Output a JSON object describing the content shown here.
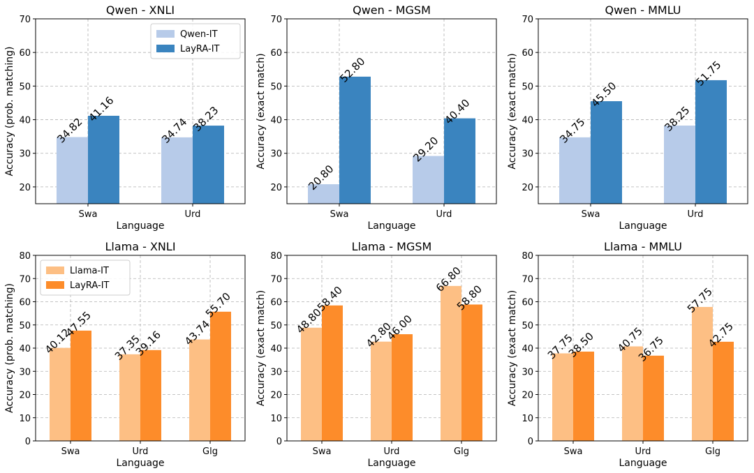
{
  "chart_data": [
    {
      "type": "bar",
      "title": "Qwen - XNLI",
      "xlabel": "Language",
      "ylabel": "Accuracy (prob. matching)",
      "ylim": [
        15,
        70
      ],
      "yticks": [
        20,
        30,
        40,
        50,
        60,
        70
      ],
      "grid": true,
      "categories": [
        "Swa",
        "Urd"
      ],
      "series": [
        {
          "name": "Qwen-IT",
          "values": [
            34.82,
            34.74
          ],
          "labels": [
            "34.82",
            "34.74"
          ],
          "color": "#b7cbe9"
        },
        {
          "name": "LayRA-IT",
          "values": [
            41.16,
            38.23
          ],
          "labels": [
            "41.16",
            "38.23"
          ],
          "color": "#3a84bf"
        }
      ],
      "legend": "top-right"
    },
    {
      "type": "bar",
      "title": "Qwen - MGSM",
      "xlabel": "Language",
      "ylabel": "Accuracy (exact match)",
      "ylim": [
        15,
        70
      ],
      "yticks": [
        20,
        30,
        40,
        50,
        60,
        70
      ],
      "grid": true,
      "categories": [
        "Swa",
        "Urd"
      ],
      "series": [
        {
          "name": "Qwen-IT",
          "values": [
            20.8,
            29.2
          ],
          "labels": [
            "20.80",
            "29.20"
          ],
          "color": "#b7cbe9"
        },
        {
          "name": "LayRA-IT",
          "values": [
            52.8,
            40.4
          ],
          "labels": [
            "52.80",
            "40.40"
          ],
          "color": "#3a84bf"
        }
      ],
      "legend": "none"
    },
    {
      "type": "bar",
      "title": "Qwen - MMLU",
      "xlabel": "Language",
      "ylabel": "Accuracy (exact match)",
      "ylim": [
        15,
        70
      ],
      "yticks": [
        20,
        30,
        40,
        50,
        60,
        70
      ],
      "grid": true,
      "categories": [
        "Swa",
        "Urd"
      ],
      "series": [
        {
          "name": "Qwen-IT",
          "values": [
            34.75,
            38.25
          ],
          "labels": [
            "34.75",
            "38.25"
          ],
          "color": "#b7cbe9"
        },
        {
          "name": "LayRA-IT",
          "values": [
            45.5,
            51.75
          ],
          "labels": [
            "45.50",
            "51.75"
          ],
          "color": "#3a84bf"
        }
      ],
      "legend": "none"
    },
    {
      "type": "bar",
      "title": "Llama - XNLI",
      "xlabel": "Language",
      "ylabel": "Accuracy (prob. matching)",
      "ylim": [
        0,
        80
      ],
      "yticks": [
        0,
        10,
        20,
        30,
        40,
        50,
        60,
        70,
        80
      ],
      "grid": true,
      "categories": [
        "Swa",
        "Urd",
        "Glg"
      ],
      "series": [
        {
          "name": "Llama-IT",
          "values": [
            40.12,
            37.35,
            43.74
          ],
          "labels": [
            "40.12",
            "37.35",
            "43.74"
          ],
          "color": "#fdbf84"
        },
        {
          "name": "LayRA-IT",
          "values": [
            47.55,
            39.16,
            55.7
          ],
          "labels": [
            "47.55",
            "39.16",
            "55.70"
          ],
          "color": "#fd8c2a"
        }
      ],
      "legend": "top-left"
    },
    {
      "type": "bar",
      "title": "Llama - MGSM",
      "xlabel": "Language",
      "ylabel": "Accuracy (exact match)",
      "ylim": [
        0,
        80
      ],
      "yticks": [
        0,
        10,
        20,
        30,
        40,
        50,
        60,
        70,
        80
      ],
      "grid": true,
      "categories": [
        "Swa",
        "Urd",
        "Glg"
      ],
      "series": [
        {
          "name": "Llama-IT",
          "values": [
            48.8,
            42.8,
            66.8
          ],
          "labels": [
            "48.80",
            "42.80",
            "66.80"
          ],
          "color": "#fdbf84"
        },
        {
          "name": "LayRA-IT",
          "values": [
            58.4,
            46.0,
            58.8
          ],
          "labels": [
            "58.40",
            "46.00",
            "58.80"
          ],
          "color": "#fd8c2a"
        }
      ],
      "legend": "none"
    },
    {
      "type": "bar",
      "title": "Llama - MMLU",
      "xlabel": "Language",
      "ylabel": "Accuracy (exact match)",
      "ylim": [
        0,
        80
      ],
      "yticks": [
        0,
        10,
        20,
        30,
        40,
        50,
        60,
        70,
        80
      ],
      "grid": true,
      "categories": [
        "Swa",
        "Urd",
        "Glg"
      ],
      "series": [
        {
          "name": "Llama-IT",
          "values": [
            37.75,
            40.75,
            57.75
          ],
          "labels": [
            "37.75",
            "40.75",
            "57.75"
          ],
          "color": "#fdbf84"
        },
        {
          "name": "LayRA-IT",
          "values": [
            38.5,
            36.75,
            42.75
          ],
          "labels": [
            "38.50",
            "36.75",
            "42.75"
          ],
          "color": "#fd8c2a"
        }
      ],
      "legend": "none"
    }
  ]
}
